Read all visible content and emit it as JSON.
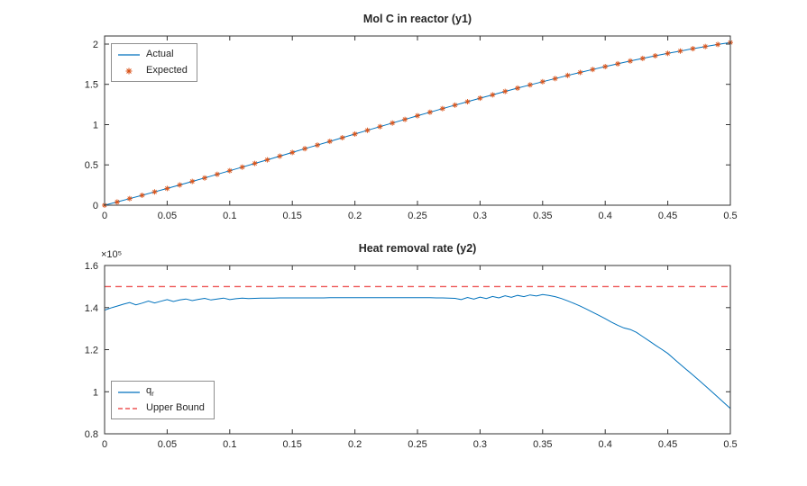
{
  "figure": {
    "background": "#FFFFFF",
    "axis_color": "#333333",
    "text_color": "#262626"
  },
  "chart_data": [
    {
      "type": "line",
      "title": "Mol C in reactor (y1)",
      "xlabel": "",
      "ylabel": "",
      "xlim": [
        0,
        0.5
      ],
      "ylim": [
        0,
        2.1
      ],
      "grid": false,
      "xticks": [
        0,
        0.05,
        0.1,
        0.15,
        0.2,
        0.25,
        0.3,
        0.35,
        0.4,
        0.45,
        0.5
      ],
      "xtick_labels": [
        "0",
        "0.05",
        "0.1",
        "0.15",
        "0.2",
        "0.25",
        "0.3",
        "0.35",
        "0.4",
        "0.45",
        "0.5"
      ],
      "yticks": [
        0,
        0.5,
        1,
        1.5,
        2
      ],
      "ytick_labels": [
        "0",
        "0.5",
        "1",
        "1.5",
        "2"
      ],
      "x": [
        0,
        0.01,
        0.02,
        0.03,
        0.04,
        0.05,
        0.06,
        0.07,
        0.08,
        0.09,
        0.1,
        0.11,
        0.12,
        0.13,
        0.14,
        0.15,
        0.16,
        0.17,
        0.18,
        0.19,
        0.2,
        0.21,
        0.22,
        0.23,
        0.24,
        0.25,
        0.26,
        0.27,
        0.28,
        0.29,
        0.3,
        0.31,
        0.32,
        0.33,
        0.34,
        0.35,
        0.36,
        0.37,
        0.38,
        0.39,
        0.4,
        0.41,
        0.42,
        0.43,
        0.44,
        0.45,
        0.46,
        0.47,
        0.48,
        0.49,
        0.5
      ],
      "y_actual": [
        0,
        0.04,
        0.081,
        0.123,
        0.165,
        0.208,
        0.251,
        0.295,
        0.339,
        0.383,
        0.428,
        0.473,
        0.518,
        0.563,
        0.609,
        0.655,
        0.701,
        0.746,
        0.792,
        0.838,
        0.884,
        0.929,
        0.975,
        1.02,
        1.065,
        1.11,
        1.154,
        1.199,
        1.242,
        1.285,
        1.328,
        1.37,
        1.412,
        1.453,
        1.494,
        1.533,
        1.572,
        1.611,
        1.648,
        1.685,
        1.72,
        1.755,
        1.789,
        1.822,
        1.854,
        1.884,
        1.914,
        1.942,
        1.969,
        1.995,
        2.02
      ],
      "series": [
        {
          "name": "Actual",
          "style": "line",
          "color": "#0072BD",
          "y_key": "y_actual"
        },
        {
          "name": "Expected",
          "style": "asterisk-markers",
          "color": "#D95319",
          "y_key": "y_actual"
        }
      ],
      "legend": {
        "position": "top-left",
        "entries": [
          {
            "label": "Actual",
            "swatch": "solid-line"
          },
          {
            "label": "Expected",
            "swatch": "asterisk-marker"
          }
        ]
      }
    },
    {
      "type": "line",
      "title": "Heat removal rate (y2)",
      "xlabel": "",
      "ylabel": "",
      "y_exponent_label": "×10⁵",
      "y_units_scale": 100000,
      "xlim": [
        0,
        0.5
      ],
      "ylim": [
        0.8,
        1.6
      ],
      "grid": false,
      "xticks": [
        0,
        0.05,
        0.1,
        0.15,
        0.2,
        0.25,
        0.3,
        0.35,
        0.4,
        0.45,
        0.5
      ],
      "xtick_labels": [
        "0",
        "0.05",
        "0.1",
        "0.15",
        "0.2",
        "0.25",
        "0.3",
        "0.35",
        "0.4",
        "0.45",
        "0.5"
      ],
      "yticks": [
        0.8,
        1,
        1.2,
        1.4,
        1.6
      ],
      "ytick_labels": [
        "0.8",
        "1",
        "1.2",
        "1.4",
        "1.6"
      ],
      "upper_bound": 1.5,
      "x": [
        0,
        0.005,
        0.01,
        0.015,
        0.02,
        0.025,
        0.03,
        0.035,
        0.04,
        0.045,
        0.05,
        0.055,
        0.06,
        0.065,
        0.07,
        0.075,
        0.08,
        0.085,
        0.09,
        0.095,
        0.1,
        0.105,
        0.11,
        0.115,
        0.12,
        0.125,
        0.13,
        0.135,
        0.14,
        0.145,
        0.15,
        0.155,
        0.16,
        0.165,
        0.17,
        0.175,
        0.18,
        0.185,
        0.19,
        0.195,
        0.2,
        0.205,
        0.21,
        0.215,
        0.22,
        0.225,
        0.23,
        0.235,
        0.24,
        0.245,
        0.25,
        0.255,
        0.26,
        0.265,
        0.27,
        0.275,
        0.28,
        0.285,
        0.29,
        0.295,
        0.3,
        0.305,
        0.31,
        0.315,
        0.32,
        0.325,
        0.33,
        0.335,
        0.34,
        0.345,
        0.35,
        0.355,
        0.36,
        0.365,
        0.37,
        0.375,
        0.38,
        0.385,
        0.39,
        0.395,
        0.4,
        0.405,
        0.41,
        0.415,
        0.42,
        0.425,
        0.43,
        0.435,
        0.44,
        0.445,
        0.45,
        0.455,
        0.46,
        0.465,
        0.47,
        0.475,
        0.48,
        0.485,
        0.49,
        0.495,
        0.5
      ],
      "y_qr": [
        1.388,
        1.398,
        1.407,
        1.416,
        1.424,
        1.413,
        1.421,
        1.431,
        1.422,
        1.43,
        1.438,
        1.429,
        1.436,
        1.441,
        1.433,
        1.439,
        1.444,
        1.436,
        1.441,
        1.445,
        1.438,
        1.442,
        1.445,
        1.443,
        1.444,
        1.445,
        1.445,
        1.445,
        1.446,
        1.446,
        1.446,
        1.446,
        1.446,
        1.446,
        1.446,
        1.446,
        1.447,
        1.447,
        1.447,
        1.447,
        1.447,
        1.447,
        1.447,
        1.447,
        1.447,
        1.447,
        1.447,
        1.447,
        1.447,
        1.447,
        1.447,
        1.447,
        1.447,
        1.446,
        1.446,
        1.445,
        1.444,
        1.438,
        1.448,
        1.44,
        1.45,
        1.443,
        1.453,
        1.446,
        1.456,
        1.449,
        1.458,
        1.452,
        1.46,
        1.455,
        1.462,
        1.458,
        1.452,
        1.443,
        1.432,
        1.42,
        1.407,
        1.393,
        1.378,
        1.363,
        1.347,
        1.331,
        1.316,
        1.303,
        1.296,
        1.282,
        1.262,
        1.242,
        1.222,
        1.202,
        1.182,
        1.156,
        1.13,
        1.105,
        1.08,
        1.054,
        1.028,
        1.001,
        0.974,
        0.947,
        0.92
      ],
      "series": [
        {
          "name": "q_r",
          "style": "line",
          "color": "#0072BD",
          "y_key": "y_qr"
        },
        {
          "name": "Upper Bound",
          "style": "dashed-hline",
          "color": "#EE5555",
          "value_key": "upper_bound"
        }
      ],
      "legend": {
        "position": "bottom-left",
        "entries": [
          {
            "label": "q",
            "sub": "r",
            "swatch": "solid-line"
          },
          {
            "label": "Upper Bound",
            "swatch": "dashed-line"
          }
        ]
      }
    }
  ]
}
